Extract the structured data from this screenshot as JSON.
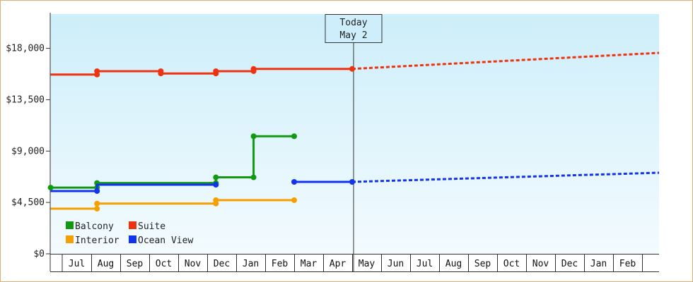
{
  "chart_data": {
    "type": "line",
    "y_axis": {
      "ticks": [
        0,
        4500,
        9000,
        13500,
        18000
      ],
      "tick_labels": [
        "$0",
        "$4,500",
        "$9,000",
        "$13,500",
        "$18,000"
      ],
      "ylim": [
        0,
        21000
      ]
    },
    "x_axis": {
      "months": [
        "Jul",
        "Aug",
        "Sep",
        "Oct",
        "Nov",
        "Dec",
        "Jan",
        "Feb",
        "Mar",
        "Apr",
        "May",
        "Jun",
        "Jul",
        "Aug",
        "Sep",
        "Oct",
        "Nov",
        "Dec",
        "Jan",
        "Feb"
      ],
      "range_months": [
        -0.4,
        21.4
      ]
    },
    "today_marker": {
      "line1": "Today",
      "line2": "May 2",
      "x": 10.0
    },
    "series": [
      {
        "name": "Suite",
        "color": "#ee3311",
        "points": [
          [
            -0.4,
            15700
          ],
          [
            1.2,
            15700
          ],
          [
            1.2,
            16000
          ],
          [
            3.4,
            16000
          ],
          [
            3.4,
            15800
          ],
          [
            5.3,
            15800
          ],
          [
            5.3,
            16000
          ],
          [
            6.6,
            16000
          ],
          [
            6.6,
            16200
          ],
          [
            10.0,
            16200
          ]
        ],
        "markers": [
          [
            1.2,
            15700
          ],
          [
            1.2,
            16000
          ],
          [
            3.4,
            16000
          ],
          [
            3.4,
            15800
          ],
          [
            5.3,
            15800
          ],
          [
            5.3,
            16000
          ],
          [
            6.6,
            16000
          ],
          [
            6.6,
            16200
          ],
          [
            10.0,
            16200
          ]
        ],
        "projection": [
          [
            10.0,
            16200
          ],
          [
            21.4,
            17600
          ]
        ]
      },
      {
        "name": "Balcony",
        "color": "#119911",
        "points": [
          [
            -0.4,
            5800
          ],
          [
            1.2,
            5800
          ],
          [
            1.2,
            6200
          ],
          [
            5.3,
            6200
          ],
          [
            5.3,
            6700
          ],
          [
            6.6,
            6700
          ],
          [
            6.6,
            10300
          ],
          [
            8.0,
            10300
          ]
        ],
        "markers": [
          [
            -0.4,
            5800
          ],
          [
            1.2,
            5800
          ],
          [
            1.2,
            6200
          ],
          [
            5.3,
            6200
          ],
          [
            5.3,
            6700
          ],
          [
            6.6,
            6700
          ],
          [
            6.6,
            10300
          ],
          [
            8.0,
            10300
          ]
        ]
      },
      {
        "name": "Interior",
        "color": "#f5a000",
        "points": [
          [
            -0.4,
            3950
          ],
          [
            1.2,
            3950
          ],
          [
            1.2,
            4400
          ],
          [
            5.3,
            4400
          ],
          [
            5.3,
            4700
          ],
          [
            8.0,
            4700
          ]
        ],
        "markers": [
          [
            1.2,
            3950
          ],
          [
            1.2,
            4400
          ],
          [
            5.3,
            4400
          ],
          [
            5.3,
            4700
          ],
          [
            8.0,
            4700
          ]
        ]
      },
      {
        "name": "Ocean View",
        "color": "#1133ee",
        "points": [
          [
            -0.4,
            5500
          ],
          [
            1.2,
            5500
          ],
          [
            1.2,
            6050
          ],
          [
            5.3,
            6050
          ]
        ],
        "points2": [
          [
            8.0,
            6300
          ],
          [
            10.0,
            6300
          ]
        ],
        "markers": [
          [
            1.2,
            5500
          ],
          [
            5.3,
            6050
          ],
          [
            8.0,
            6300
          ],
          [
            10.0,
            6300
          ]
        ],
        "projection": [
          [
            10.0,
            6300
          ],
          [
            21.4,
            7100
          ]
        ]
      }
    ],
    "legend": [
      {
        "name": "Balcony",
        "color": "#119911"
      },
      {
        "name": "Suite",
        "color": "#ee3311"
      },
      {
        "name": "Interior",
        "color": "#f5a000"
      },
      {
        "name": "Ocean View",
        "color": "#1133ee"
      }
    ],
    "legend_position": "bottom-left"
  }
}
